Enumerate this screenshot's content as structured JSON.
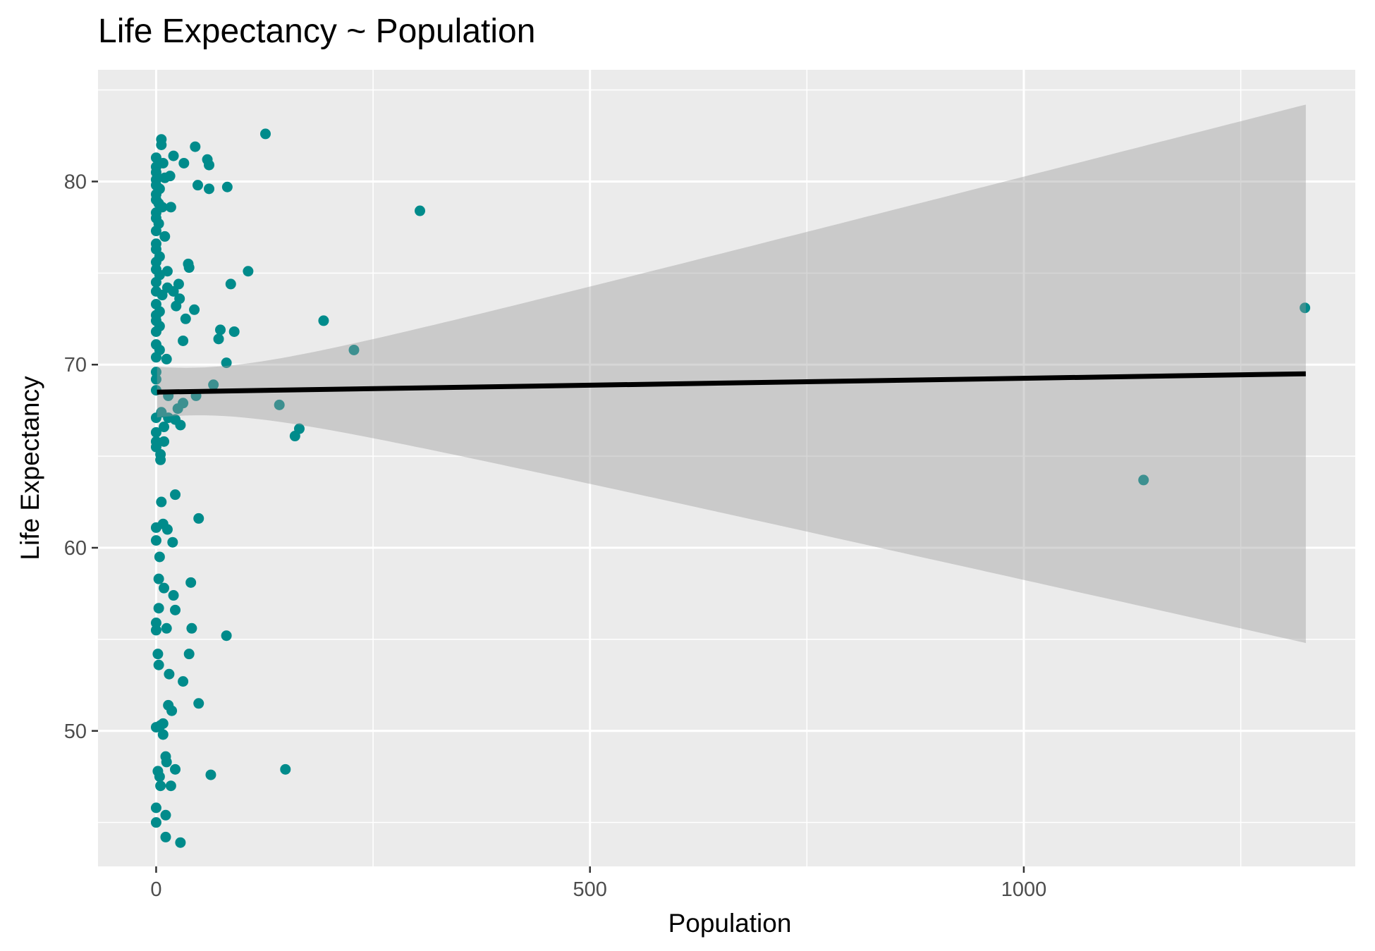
{
  "chart_data": {
    "type": "scatter",
    "title": "Life Expectancy ~ Population",
    "xlabel": "Population",
    "ylabel": "Life Expectancy",
    "xlim": [
      -67,
      1382
    ],
    "ylim": [
      42.6,
      86.1
    ],
    "x_ticks": [
      0,
      500,
      1000
    ],
    "x_tick_labels": [
      "0",
      "500",
      "1000"
    ],
    "x_minor_ticks": [
      250,
      750,
      1250
    ],
    "y_ticks": [
      50,
      60,
      70,
      80
    ],
    "y_tick_labels": [
      "50",
      "60",
      "70",
      "80"
    ],
    "y_minor_ticks": [
      45,
      55,
      65,
      75,
      85
    ],
    "grid": true,
    "legend": "none",
    "colors": {
      "points": "#008B8B",
      "panel_background": "#EBEBEB",
      "grid": "#FFFFFF",
      "fit_line": "#000000",
      "confidence_band": "#999999"
    },
    "regression": {
      "method": "lm",
      "x": [
        1,
        1325
      ],
      "y": [
        68.5,
        69.5
      ],
      "ci_upper": [
        69.8,
        84.2
      ],
      "ci_lower": [
        67.2,
        54.8
      ],
      "ci_samples_x": [
        1,
        50,
        100,
        150,
        200,
        300,
        400,
        500,
        600,
        700,
        800,
        900,
        1000,
        1100,
        1200,
        1325
      ]
    },
    "series": [
      {
        "points": [
          [
            126,
            82.6
          ],
          [
            6,
            82.3
          ],
          [
            6,
            82.0
          ],
          [
            45,
            81.9
          ],
          [
            59,
            81.2
          ],
          [
            20,
            81.4
          ],
          [
            32,
            81.0
          ],
          [
            61,
            80.9
          ],
          [
            0,
            81.3
          ],
          [
            8,
            81.0
          ],
          [
            0,
            80.8
          ],
          [
            0,
            80.5
          ],
          [
            16,
            80.3
          ],
          [
            10,
            80.2
          ],
          [
            0,
            80.1
          ],
          [
            48,
            79.8
          ],
          [
            82,
            79.7
          ],
          [
            61,
            79.6
          ],
          [
            0,
            79.8
          ],
          [
            4,
            79.6
          ],
          [
            0,
            79.3
          ],
          [
            0,
            79.0
          ],
          [
            3,
            78.8
          ],
          [
            7,
            78.6
          ],
          [
            17,
            78.6
          ],
          [
            0,
            78.3
          ],
          [
            304,
            78.4
          ],
          [
            0,
            78.0
          ],
          [
            3,
            77.7
          ],
          [
            0,
            77.3
          ],
          [
            10,
            77.0
          ],
          [
            0,
            76.6
          ],
          [
            0,
            76.3
          ],
          [
            4,
            75.9
          ],
          [
            0,
            75.6
          ],
          [
            37,
            75.5
          ],
          [
            38,
            75.3
          ],
          [
            106,
            75.1
          ],
          [
            13,
            75.1
          ],
          [
            0,
            75.2
          ],
          [
            4,
            74.9
          ],
          [
            0,
            74.5
          ],
          [
            86,
            74.4
          ],
          [
            26,
            74.4
          ],
          [
            13,
            74.2
          ],
          [
            0,
            74.0
          ],
          [
            20,
            74.0
          ],
          [
            7,
            73.8
          ],
          [
            27,
            73.6
          ],
          [
            0,
            73.3
          ],
          [
            23,
            73.2
          ],
          [
            44,
            73.0
          ],
          [
            4,
            72.9
          ],
          [
            0,
            72.7
          ],
          [
            34,
            72.5
          ],
          [
            193,
            72.4
          ],
          [
            0,
            72.4
          ],
          [
            4,
            72.1
          ],
          [
            74,
            71.9
          ],
          [
            90,
            71.8
          ],
          [
            0,
            71.8
          ],
          [
            72,
            71.4
          ],
          [
            31,
            71.3
          ],
          [
            0,
            71.1
          ],
          [
            4,
            70.8
          ],
          [
            228,
            70.8
          ],
          [
            0,
            70.4
          ],
          [
            12,
            70.3
          ],
          [
            81,
            70.1
          ],
          [
            0,
            69.6
          ],
          [
            1324,
            73.1
          ],
          [
            0,
            69.2
          ],
          [
            66,
            68.9
          ],
          [
            0,
            68.6
          ],
          [
            46,
            68.3
          ],
          [
            14,
            68.3
          ],
          [
            31,
            67.9
          ],
          [
            142,
            67.8
          ],
          [
            25,
            67.6
          ],
          [
            0,
            67.1
          ],
          [
            6,
            67.4
          ],
          [
            14,
            67.1
          ],
          [
            22,
            67.0
          ],
          [
            28,
            66.7
          ],
          [
            9,
            66.6
          ],
          [
            165,
            66.5
          ],
          [
            0,
            66.3
          ],
          [
            160,
            66.1
          ],
          [
            0,
            65.8
          ],
          [
            9,
            65.8
          ],
          [
            0,
            65.5
          ],
          [
            5,
            65.1
          ],
          [
            5,
            64.8
          ],
          [
            1138,
            63.7
          ],
          [
            22,
            62.9
          ],
          [
            6,
            62.5
          ],
          [
            49,
            61.6
          ],
          [
            8,
            61.3
          ],
          [
            0,
            61.1
          ],
          [
            13,
            61.0
          ],
          [
            0,
            60.4
          ],
          [
            19,
            60.3
          ],
          [
            4,
            59.5
          ],
          [
            3,
            58.3
          ],
          [
            40,
            58.1
          ],
          [
            9,
            57.8
          ],
          [
            20,
            57.4
          ],
          [
            3,
            56.7
          ],
          [
            22,
            56.6
          ],
          [
            0,
            55.9
          ],
          [
            12,
            55.6
          ],
          [
            41,
            55.6
          ],
          [
            0,
            55.5
          ],
          [
            81,
            55.2
          ],
          [
            38,
            54.2
          ],
          [
            2,
            54.2
          ],
          [
            3,
            53.6
          ],
          [
            15,
            53.1
          ],
          [
            31,
            52.7
          ],
          [
            49,
            51.5
          ],
          [
            14,
            51.4
          ],
          [
            18,
            51.1
          ],
          [
            8,
            50.4
          ],
          [
            5,
            50.3
          ],
          [
            0,
            50.2
          ],
          [
            8,
            49.8
          ],
          [
            11,
            48.6
          ],
          [
            12,
            48.3
          ],
          [
            22,
            47.9
          ],
          [
            149,
            47.9
          ],
          [
            2,
            47.8
          ],
          [
            63,
            47.6
          ],
          [
            4,
            47.5
          ],
          [
            5,
            47.0
          ],
          [
            17,
            47.0
          ],
          [
            0,
            45.8
          ],
          [
            11,
            45.4
          ],
          [
            0,
            45.0
          ],
          [
            11,
            44.2
          ],
          [
            28,
            43.9
          ]
        ]
      }
    ]
  }
}
